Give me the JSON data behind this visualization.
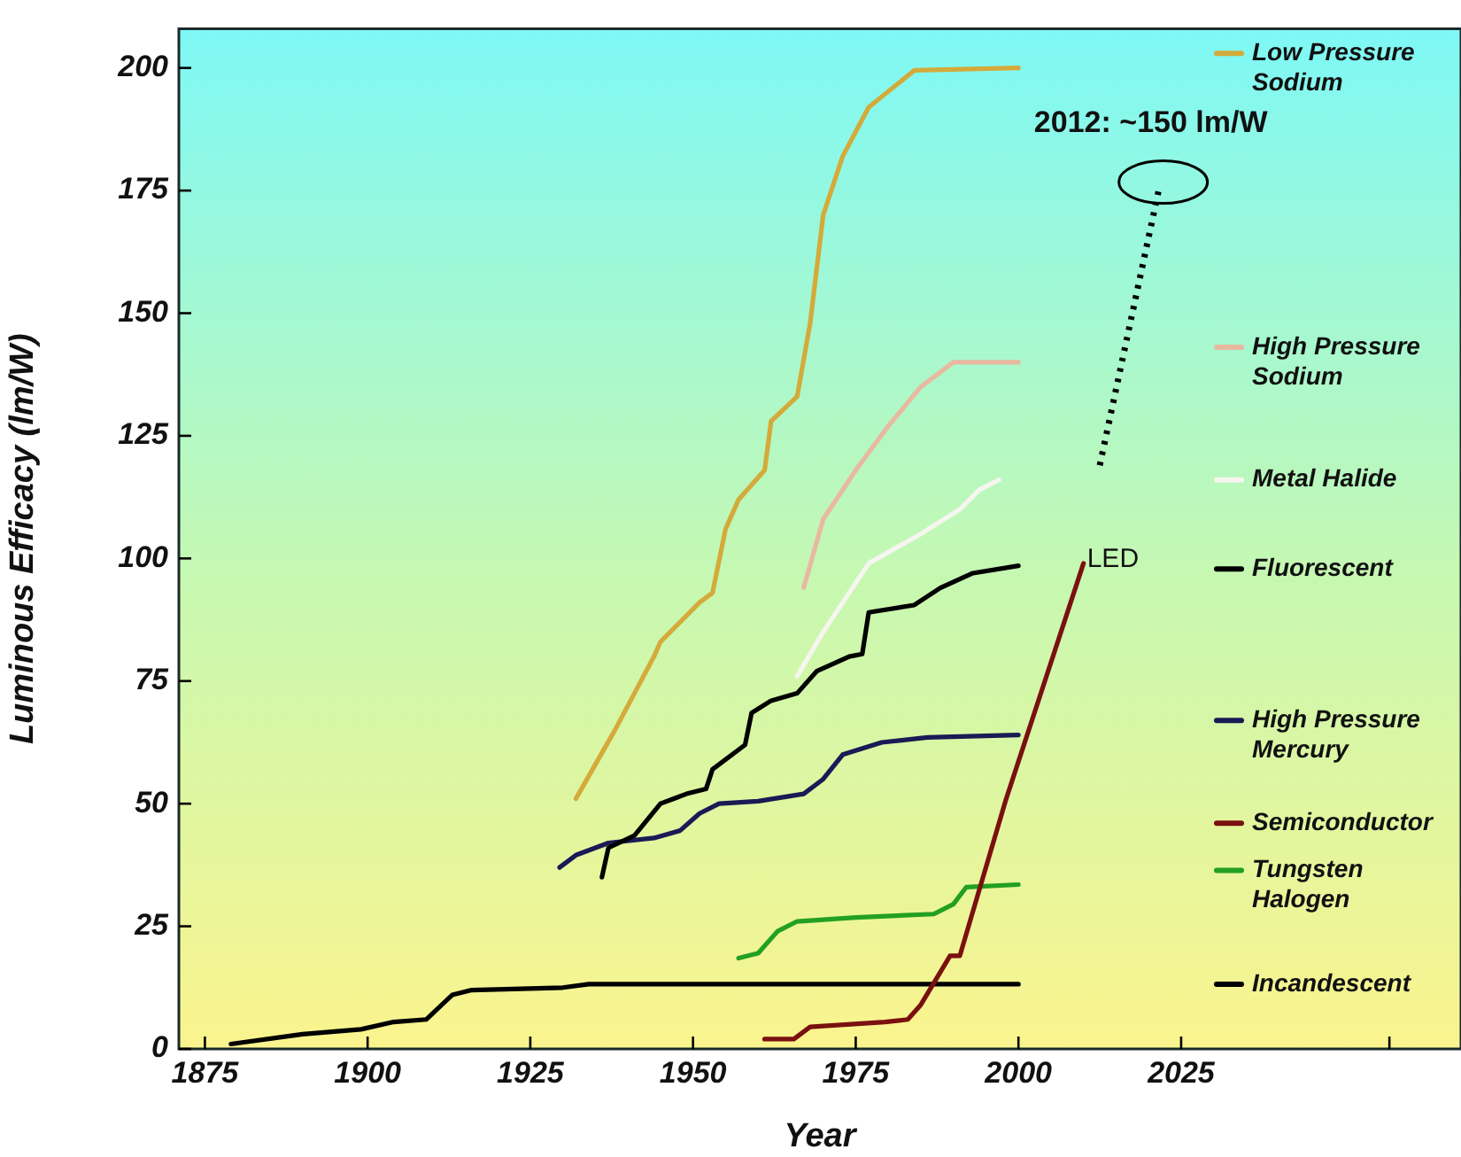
{
  "chart_data": {
    "type": "line",
    "xlabel": "Year",
    "ylabel": "Luminous Efficacy (lm/W)",
    "xlim": [
      1871,
      2068
    ],
    "xticks": [
      1875,
      1900,
      1925,
      1950,
      1975,
      2000,
      2025,
      {
        "value": 2057,
        "label": null
      }
    ],
    "ylim": [
      0,
      208
    ],
    "yticks": [
      0,
      25,
      50,
      75,
      100,
      125,
      150,
      175,
      200
    ],
    "legend": "right",
    "marker": "none",
    "line_style": "solid",
    "annotations": [
      {
        "text": "LED",
        "x": 2010,
        "y": 99
      },
      "2012: ~150 lm/W"
    ],
    "series": [
      {
        "name": "Low Pressure Sodium",
        "color": "#d4aa3a",
        "x": [
          1932,
          1938,
          1944,
          1945,
          1951,
          1953,
          1955,
          1957,
          1961,
          1962,
          1966,
          1968,
          1970,
          1973,
          1977,
          1984,
          2000
        ],
        "values": [
          51,
          65,
          80,
          83,
          91,
          93,
          106,
          112,
          118,
          128,
          133,
          148,
          170,
          182,
          192,
          199.5,
          200
        ]
      },
      {
        "name": "High Pressure Sodium",
        "color": "#e8b9a0",
        "x": [
          1967,
          1970,
          1975,
          1980,
          1985,
          1990,
          2000
        ],
        "values": [
          94,
          108,
          118,
          127,
          135,
          140,
          140
        ]
      },
      {
        "name": "Metal Halide",
        "color": "#f6f6f0",
        "x": [
          1966,
          1970,
          1977,
          1985,
          1991,
          1994,
          1997
        ],
        "values": [
          76,
          85,
          99,
          105,
          110,
          114,
          116
        ]
      },
      {
        "name": "Fluorescent",
        "color": "#000000",
        "x": [
          1936,
          1937,
          1941,
          1945,
          1949,
          1952,
          1953,
          1958,
          1959,
          1962,
          1966,
          1969,
          1974,
          1976,
          1977,
          1984,
          1988,
          1993,
          2000
        ],
        "values": [
          35,
          41,
          43.5,
          50,
          52,
          53,
          57,
          62,
          68.5,
          71,
          72.5,
          77,
          80,
          80.5,
          89,
          90.5,
          94,
          97,
          98.5
        ]
      },
      {
        "name": "High Pressure Mercury",
        "color": "#1a1a55",
        "x": [
          1929.5,
          1932,
          1937,
          1944,
          1948,
          1951,
          1954,
          1960,
          1967,
          1970,
          1973,
          1979,
          1986,
          2000
        ],
        "values": [
          37,
          39.5,
          42,
          43,
          44.5,
          48,
          50,
          50.5,
          52,
          55,
          60,
          62.5,
          63.5,
          64
        ]
      },
      {
        "name": "Semiconductor",
        "color": "#7a1010",
        "x": [
          1961,
          1965.5,
          1968,
          1979.5,
          1983,
          1985,
          1989.5,
          1991,
          1998,
          2010
        ],
        "values": [
          2,
          2,
          4.5,
          5.5,
          6,
          9,
          19,
          19,
          50.5,
          99
        ]
      },
      {
        "name": "Tungsten Halogen",
        "color": "#22a022",
        "x": [
          1957,
          1960,
          1963,
          1966,
          1975,
          1987,
          1990,
          1992,
          2000
        ],
        "values": [
          18.5,
          19.5,
          24,
          26,
          26.8,
          27.5,
          29.5,
          33,
          33.5
        ]
      },
      {
        "name": "Incandescent",
        "color": "#000000",
        "x": [
          1879,
          1890,
          1899,
          1904,
          1909,
          1913,
          1916,
          1930,
          1934,
          2000
        ],
        "values": [
          1,
          3,
          4,
          5.5,
          6,
          11,
          12,
          12.5,
          13.2,
          13.2
        ]
      },
      {
        "color": "#000000",
        "line_style": "dotted",
        "x": [
          2012.5,
          2021.7
        ],
        "values": [
          119,
          176
        ]
      }
    ]
  }
}
